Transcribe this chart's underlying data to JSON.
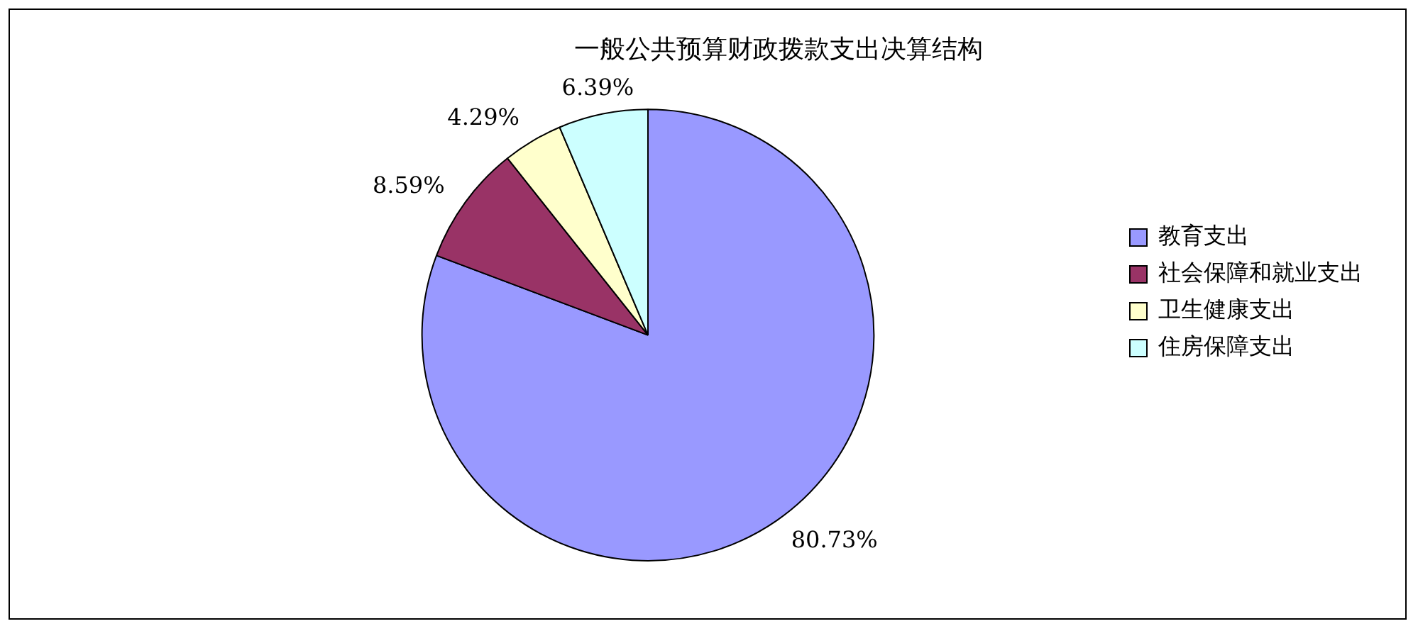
{
  "chart_data": {
    "type": "pie",
    "title": "一般公共预算财政拨款支出决算结构",
    "categories": [
      "教育支出",
      "社会保障和就业支出",
      "卫生健康支出",
      "住房保障支出"
    ],
    "values": [
      80.73,
      8.59,
      4.29,
      6.39
    ],
    "value_labels": [
      "80.73%",
      "8.59%",
      "4.29%",
      "6.39%"
    ],
    "colors": [
      "#9999ff",
      "#993366",
      "#ffffcc",
      "#ccffff"
    ],
    "legend": "right"
  }
}
